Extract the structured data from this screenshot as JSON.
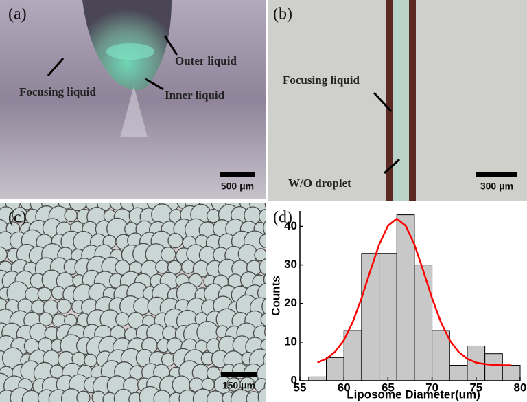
{
  "panels": [
    {
      "label": "(a)",
      "annotations": [
        "Focusing liquid",
        "Outer liquid",
        "Inner liquid"
      ],
      "scale_bar": "500 μm"
    },
    {
      "label": "(b)",
      "annotations": [
        "Focusing liquid",
        "W/O droplet"
      ],
      "scale_bar": "300 μm"
    },
    {
      "label": "(c)",
      "scale_bar": "150 μm"
    },
    {
      "label": "(d)"
    }
  ],
  "chart_data": {
    "type": "histogram",
    "xlabel": "Liposome Diameter(um)",
    "ylabel": "Counts",
    "bins": [
      56,
      58,
      60,
      62,
      64,
      66,
      68,
      70,
      72,
      74,
      76,
      78,
      80
    ],
    "values": [
      1,
      6,
      13,
      33,
      33,
      43,
      30,
      13,
      4,
      9,
      7,
      4
    ],
    "color": "#c8c8c8",
    "xlim": [
      55,
      80
    ],
    "ylim": [
      0,
      44
    ],
    "xticks": [
      55,
      60,
      65,
      70,
      75,
      80
    ],
    "yticks": [
      0,
      10,
      20,
      30,
      40
    ],
    "fit": {
      "x": [
        57,
        58,
        59,
        60,
        61,
        62,
        63,
        64,
        65,
        66,
        67,
        68,
        69,
        70,
        71,
        72,
        73,
        74,
        75,
        76,
        77,
        78,
        79
      ],
      "values": [
        4.7,
        5.7,
        7.5,
        10.5,
        15.2,
        21.4,
        28.5,
        35.3,
        40.2,
        42,
        40.2,
        35.3,
        28.5,
        21.4,
        15.2,
        10.5,
        7.5,
        5.7,
        4.7,
        4.3,
        4.1,
        4.0,
        4.0
      ],
      "color": "#ff0000"
    }
  }
}
